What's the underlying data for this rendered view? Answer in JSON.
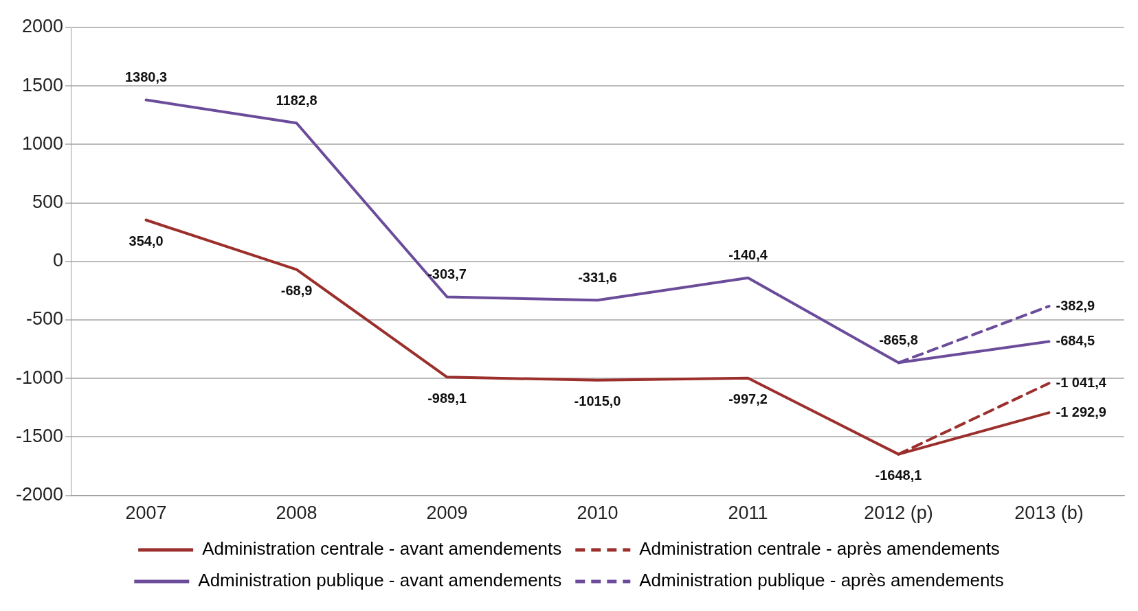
{
  "chart_data": {
    "type": "line",
    "categories": [
      "2007",
      "2008",
      "2009",
      "2010",
      "2011",
      "2012 (p)",
      "2013 (b)"
    ],
    "series": [
      {
        "name": "Administration centrale - avant amendements",
        "color": "#9b2f2c",
        "line_style": "solid",
        "values": [
          354.0,
          -68.9,
          -989.1,
          -1015.0,
          -997.2,
          -1648.1,
          -1292.9
        ],
        "value_labels": [
          "354,0",
          "-68,9",
          "-989,1",
          "-1015,0",
          "-997,2",
          "-1648,1",
          "-1 292,9"
        ]
      },
      {
        "name": "Administration centrale - après amendements",
        "color": "#9b2f2c",
        "line_style": "dashed",
        "values": [
          null,
          null,
          null,
          null,
          null,
          -1648.1,
          -1041.4
        ],
        "value_labels": [
          null,
          null,
          null,
          null,
          null,
          null,
          "-1 041,4"
        ]
      },
      {
        "name": "Administration publique - avant amendements",
        "color": "#6b4c9a",
        "line_style": "solid",
        "values": [
          1380.3,
          1182.8,
          -303.7,
          -331.6,
          -140.4,
          -865.8,
          -684.5
        ],
        "value_labels": [
          "1380,3",
          "1182,8",
          "-303,7",
          "-331,6",
          "-140,4",
          "-865,8",
          "-684,5"
        ]
      },
      {
        "name": "Administration publique - après amendements",
        "color": "#6b4c9a",
        "line_style": "dashed",
        "values": [
          null,
          null,
          null,
          null,
          null,
          -865.8,
          -382.9
        ],
        "value_labels": [
          null,
          null,
          null,
          null,
          null,
          null,
          "-382,9"
        ]
      }
    ],
    "ylim": [
      -2000,
      2000
    ],
    "yticks": [
      -2000,
      -1500,
      -1000,
      -500,
      0,
      500,
      1000,
      1500,
      2000
    ],
    "grid": "y",
    "legend": "bottom",
    "marker": "none"
  }
}
